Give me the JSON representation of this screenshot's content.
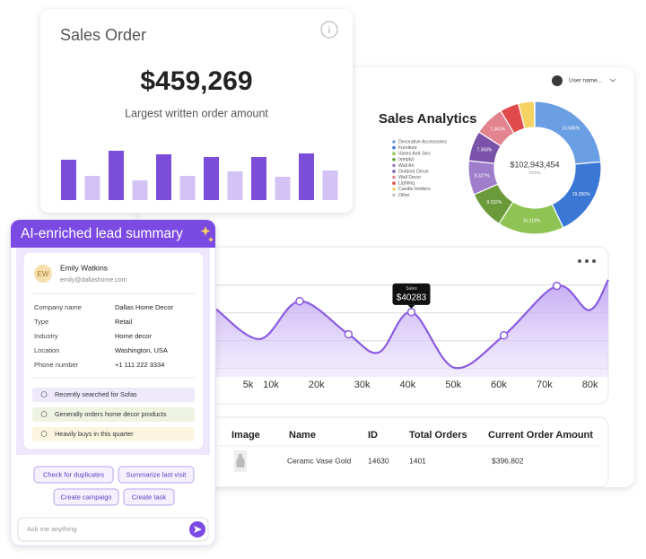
{
  "chart_data": [
    {
      "type": "bar",
      "title": "Sales Order",
      "amount": "$459,269",
      "caption": "Largest written order amount",
      "values": [
        45,
        27,
        55,
        22,
        51,
        27,
        48,
        32,
        48,
        26,
        52,
        33
      ],
      "ylim": [
        0,
        60
      ],
      "colors": [
        "#7b4dd8",
        "#d3c3f5"
      ]
    },
    {
      "type": "pie",
      "title": "Sales Analytics",
      "center_label": "$102,943,454",
      "center_sublabel": "TOTAL",
      "categories": [
        "Decorative Accessories",
        "Furniture",
        "Vases And Jars",
        "(empty)",
        "Wall Art",
        "Outdoor Decor",
        "Wall Decor",
        "Lighting",
        "Candle Holders",
        "Other"
      ],
      "values": [
        23.586,
        19.35,
        16.119,
        9.332,
        8.327,
        7.368,
        7.343,
        4.6,
        3.9,
        0.075
      ],
      "value_labels": [
        "23.586%",
        "19.350%",
        "16.119%",
        "9.332%",
        "8.327%",
        "7.368%",
        "7.343%",
        null,
        null,
        null
      ],
      "colors": [
        "#6b9fe3",
        "#3b78d6",
        "#8fc454",
        "#6b9a3b",
        "#a07dcb",
        "#7b52aa",
        "#e2838e",
        "#e14a4a",
        "#f6d262",
        "#c4c4c4"
      ]
    },
    {
      "type": "line",
      "x": [
        -2000,
        7600,
        16300,
        27000,
        33700,
        40800,
        50200,
        61100,
        72700,
        79800,
        84000
      ],
      "values": [
        41300,
        30600,
        44200,
        32300,
        25800,
        40283,
        20300,
        31900,
        49700,
        41000,
        51900
      ],
      "xlim": [
        -2000,
        84000
      ],
      "xticks": [
        {
          "value": 5000,
          "label": "5k"
        },
        {
          "value": 10000,
          "label": "10k"
        },
        {
          "value": 20000,
          "label": "20k"
        },
        {
          "value": 30000,
          "label": "30k"
        },
        {
          "value": 40000,
          "label": "40k"
        },
        {
          "value": 50000,
          "label": "50k"
        },
        {
          "value": 60000,
          "label": "60k"
        },
        {
          "value": 70000,
          "label": "70k"
        },
        {
          "value": 80000,
          "label": "80k"
        }
      ],
      "ylim": [
        17000,
        57000
      ],
      "yticks": [
        20000,
        30000,
        40000,
        50000
      ],
      "grid": true,
      "color": "#8a5ce0",
      "markers": [
        2,
        3,
        5,
        7,
        8
      ],
      "tooltip": {
        "title": "Sales",
        "label": "$40283",
        "index": 5
      }
    }
  ],
  "header": {
    "user_name": "User name..."
  },
  "table": {
    "columns": [
      "Image",
      "Name",
      "ID",
      "Total Orders",
      "Current Order Amount"
    ],
    "rows": [
      {
        "name": "Ceramc Vase Gold",
        "id": "14630",
        "total_orders": "1401",
        "amount": "$396,802"
      }
    ]
  },
  "lead": {
    "title": "AI-enriched lead summary",
    "initials": "EW",
    "name": "Emily Watkins",
    "email": "emily@dallashome.com",
    "fields": [
      {
        "label": "Company name",
        "value": "Dallas Home Decor"
      },
      {
        "label": "Type",
        "value": "Retail"
      },
      {
        "label": "Industry",
        "value": "Home decor"
      },
      {
        "label": "Location",
        "value": "Washington, USA"
      },
      {
        "label": "Phone number",
        "value": "+1 111 222 3334"
      }
    ],
    "insights": [
      "Recently searched for Sofas",
      "Generally orders home decor products",
      "Heavily buys in this quarter"
    ],
    "actions": [
      "Check for duplicates",
      "Summarize last visit",
      "Create campaign",
      "Create task"
    ],
    "input_placeholder": "Ask me anything"
  }
}
